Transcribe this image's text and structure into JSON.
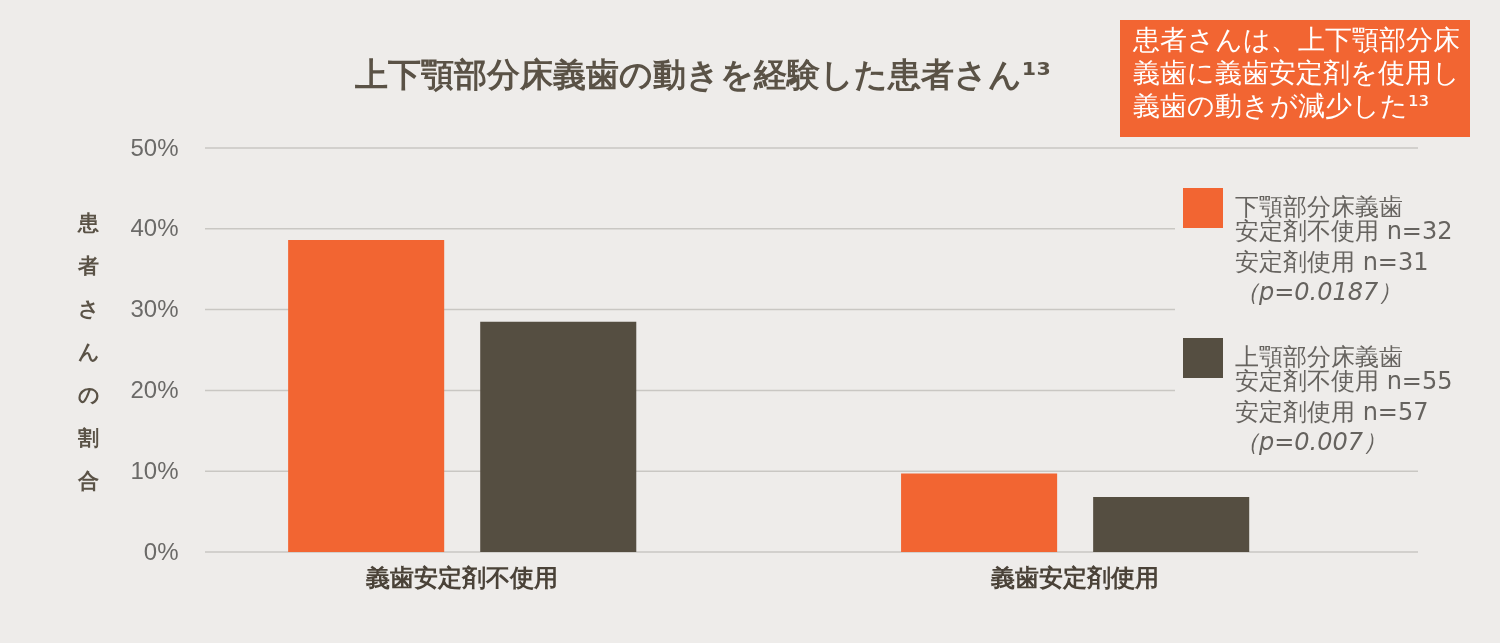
{
  "chart_data": {
    "type": "bar",
    "title": "上下顎部分床義歯の動きを経験した患者さん¹³",
    "ylabel": "患者さんの割合",
    "categories": [
      "義歯安定剤不使用",
      "義歯安定剤使用"
    ],
    "series": [
      {
        "name": "下顎部分床義歯",
        "color": "#f26532",
        "values": [
          38.6,
          9.7
        ]
      },
      {
        "name": "上顎部分床義歯",
        "color": "#554e41",
        "values": [
          28.5,
          6.8
        ]
      }
    ],
    "ylim": [
      0,
      50
    ],
    "yticks": [
      {
        "value": 0,
        "label": "0%"
      },
      {
        "value": 10,
        "label": "10%"
      },
      {
        "value": 20,
        "label": "20%"
      },
      {
        "value": 30,
        "label": "30%"
      },
      {
        "value": 40,
        "label": "40%"
      },
      {
        "value": 50,
        "label": "50%"
      }
    ],
    "grid": "y",
    "legend": "top right",
    "annotations": [
      "患者さんは、上下顎部分床義歯に義歯安定剤を使用し義歯の動きが減少した¹³",
      "安定剤不使用 n=32",
      "安定剤使用 n=31",
      "（p=0.0187）",
      "安定剤不使用 n=55",
      "安定剤使用 n=57",
      "（p=0.007）"
    ]
  }
}
